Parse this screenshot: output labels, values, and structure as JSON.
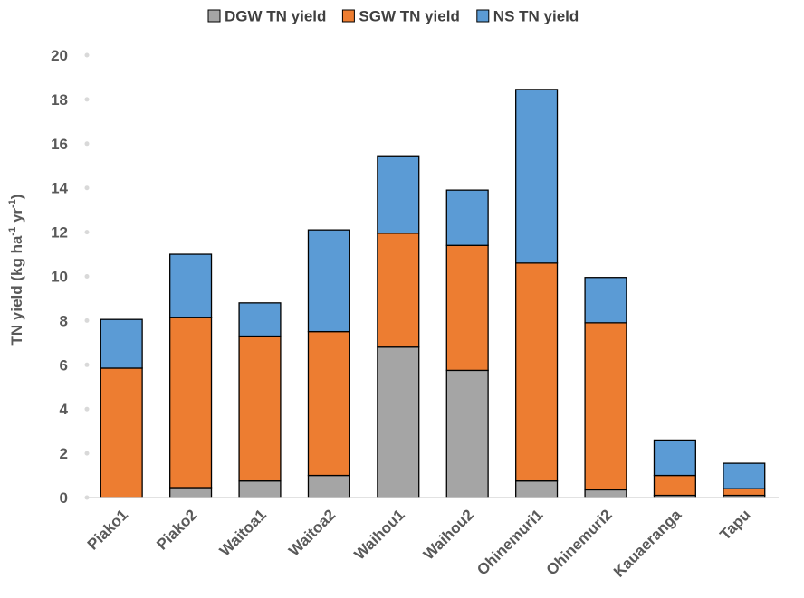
{
  "chart_data": {
    "type": "bar",
    "stacked": true,
    "categories": [
      "Piako1",
      "Piako2",
      "Waitoa1",
      "Waitoa2",
      "Waihou1",
      "Waihou2",
      "Ohinemuri1",
      "Ohinemuri2",
      "Kauaeranga",
      "Tapu"
    ],
    "series": [
      {
        "name": "DGW TN yield",
        "color": "#A5A5A5",
        "values": [
          0.0,
          0.45,
          0.75,
          1.0,
          6.8,
          5.75,
          0.75,
          0.35,
          0.1,
          0.1
        ]
      },
      {
        "name": "SGW TN yield",
        "color": "#ED7D31",
        "values": [
          5.85,
          7.7,
          6.55,
          6.5,
          5.15,
          5.65,
          9.85,
          7.55,
          0.9,
          0.3
        ]
      },
      {
        "name": "NS TN yield",
        "color": "#5B9BD5",
        "values": [
          2.2,
          2.85,
          1.5,
          4.6,
          3.5,
          2.5,
          7.85,
          2.05,
          1.6,
          1.15
        ]
      }
    ],
    "ylabel_main": "TN yield (kg ha",
    "ylabel_sup1": "-1",
    "ylabel_mid": " yr",
    "ylabel_sup2": "-1",
    "ylabel_end": ")",
    "ylim": [
      0,
      20
    ],
    "yticks": [
      "0",
      "2",
      "4",
      "6",
      "8",
      "10",
      "12",
      "14",
      "16",
      "18",
      "20"
    ],
    "legend_position": "top"
  }
}
